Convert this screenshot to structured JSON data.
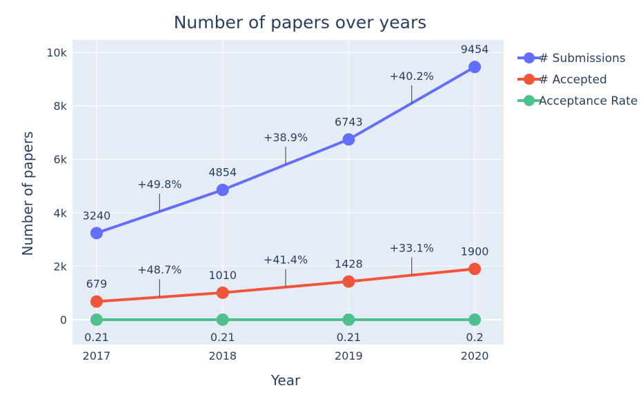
{
  "chart_data": {
    "type": "line",
    "title": "Number of papers over years",
    "xlabel": "Year",
    "ylabel": "Number of papers",
    "x": [
      2017,
      2018,
      2019,
      2020
    ],
    "xticks": [
      "2017",
      "2018",
      "2019",
      "2020"
    ],
    "yticks": [
      0,
      2000,
      4000,
      6000,
      8000,
      10000
    ],
    "ytick_labels": [
      "0",
      "2k",
      "4k",
      "6k",
      "8k",
      "10k"
    ],
    "ylim": [
      -900,
      10400
    ],
    "grid": true,
    "legend_position": "right",
    "series": [
      {
        "name": "# Submissions",
        "color": "#636efa",
        "values": [
          3240,
          4854,
          6743,
          9454
        ],
        "labels": [
          "3240",
          "4854",
          "6743",
          "9454"
        ],
        "growth": [
          "+49.8%",
          "+38.9%",
          "+40.2%"
        ]
      },
      {
        "name": "# Accepted",
        "color": "#ef553b",
        "values": [
          679,
          1010,
          1428,
          1900
        ],
        "labels": [
          "679",
          "1010",
          "1428",
          "1900"
        ],
        "growth": [
          "+48.7%",
          "+41.4%",
          "+33.1%"
        ]
      },
      {
        "name": "Acceptance Rate",
        "color": "#4fc08d",
        "values": [
          0.21,
          0.21,
          0.21,
          0.2
        ],
        "labels": [
          "0.21",
          "0.21",
          "0.21",
          "0.2"
        ],
        "growth": []
      }
    ]
  }
}
